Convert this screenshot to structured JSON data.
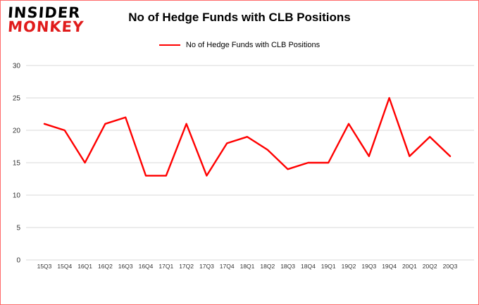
{
  "header": {
    "logo": {
      "line1": "INSIDER",
      "line2": "MONKEY"
    },
    "title": "No of Hedge Funds with CLB Positions"
  },
  "legend": {
    "label": "No of Hedge Funds with CLB Positions",
    "color": "#ff0000"
  },
  "colors": {
    "accent": "#ff0000",
    "logo_red": "#e01b1b",
    "grid": "#d9d9d9",
    "tick_text": "#333333",
    "border": "#ff6a6a"
  },
  "chart_data": {
    "type": "line",
    "title": "No of Hedge Funds with CLB Positions",
    "categories": [
      "15Q3",
      "15Q4",
      "16Q1",
      "16Q2",
      "16Q3",
      "16Q4",
      "17Q1",
      "17Q2",
      "17Q3",
      "17Q4",
      "18Q1",
      "18Q2",
      "18Q3",
      "18Q4",
      "19Q1",
      "19Q2",
      "19Q3",
      "19Q4",
      "20Q1",
      "20Q2",
      "20Q3"
    ],
    "values": [
      21,
      20,
      15,
      21,
      22,
      13,
      13,
      21,
      13,
      18,
      19,
      17,
      14,
      15,
      15,
      21,
      16,
      25,
      16,
      19,
      16
    ],
    "xlabel": "",
    "ylabel": "",
    "ylim": [
      0,
      30
    ],
    "yticks": [
      0,
      5,
      10,
      15,
      20,
      25,
      30
    ],
    "grid": true,
    "line_color": "#ff0000",
    "legend_position": "top"
  }
}
